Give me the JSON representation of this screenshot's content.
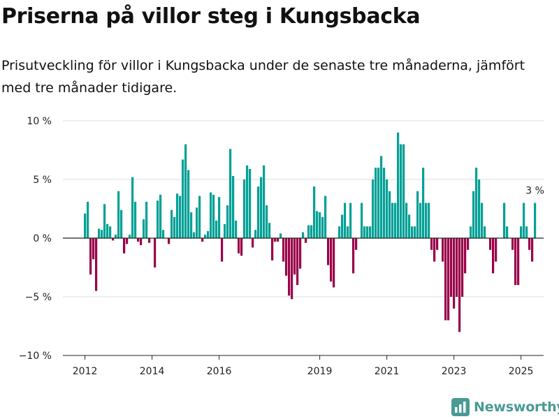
{
  "title": "Priserna på villor steg i Kungsbacka",
  "subtitle": "Prisutveckling för villor i Kungsbacka under de senaste tre månaderna, jämfört med tre månader tidigare.",
  "brand": {
    "name": "Newsworthy",
    "icon": "newsworthy-logo-icon"
  },
  "colors": {
    "positive": "#00a096",
    "negative": "#990049",
    "grid": "#dddddd",
    "zero": "#222222"
  },
  "chart_data": {
    "type": "bar",
    "x_start": "2012-01",
    "x_step": "month",
    "ylim": [
      -10,
      10
    ],
    "yticks": [
      10,
      5,
      0,
      -5,
      -10
    ],
    "ytick_labels": [
      "10 %",
      "5 %",
      "0 %",
      "−5 %",
      "−10 %"
    ],
    "xtick_labels": [
      "2012",
      "2014",
      "2016",
      "2019",
      "2021",
      "2023",
      "2025"
    ],
    "last_label": "3 %",
    "values": [
      2.1,
      3.1,
      -3.1,
      -1.8,
      -4.5,
      0.8,
      0.7,
      2.9,
      1.2,
      1.0,
      -0.2,
      0.3,
      4.0,
      2.4,
      -1.3,
      -0.5,
      0.3,
      5.2,
      3.1,
      -0.3,
      -0.6,
      1.6,
      3.1,
      -0.4,
      0,
      -2.5,
      3.2,
      3.7,
      0.7,
      0,
      -0.5,
      2.4,
      1.8,
      3.8,
      3.6,
      6.7,
      8.0,
      5.8,
      2.2,
      0.5,
      2.6,
      3.6,
      -0.3,
      0.3,
      0.6,
      3.9,
      3.7,
      1.5,
      3.5,
      -2.0,
      1.2,
      2.8,
      7.6,
      5.3,
      1.5,
      -1.3,
      -1.5,
      5.0,
      6.2,
      5.9,
      -0.8,
      0.7,
      4.4,
      5.2,
      6.2,
      2.8,
      1.3,
      -1.9,
      -0.3,
      -0.3,
      0.4,
      -2.0,
      -3.2,
      -4.9,
      -5.2,
      -3.1,
      -4.0,
      -2.6,
      0.5,
      -0.4,
      1.1,
      1.1,
      4.4,
      2.3,
      2.2,
      1.8,
      3.6,
      -2.3,
      -3.7,
      -4.2,
      0,
      1.0,
      2.0,
      3.0,
      1.0,
      3.0,
      -3.0,
      -1.0,
      0,
      3.0,
      1.0,
      1.0,
      1.0,
      5.0,
      6.0,
      6.0,
      7.0,
      6.0,
      5.0,
      4.0,
      3.0,
      3.0,
      9.0,
      8.0,
      8.0,
      3.0,
      2.0,
      1.0,
      1.0,
      4.0,
      3.0,
      6.0,
      3.0,
      3.0,
      -1.0,
      -2.0,
      -1.0,
      0,
      -2.0,
      -7.0,
      -7.0,
      -5.0,
      -6.0,
      -5.0,
      -8.0,
      -5.0,
      -3.0,
      -1.0,
      1.0,
      4.0,
      6.0,
      5.0,
      3.0,
      1.0,
      0,
      -1.0,
      -3.0,
      -2.0,
      0,
      0,
      3.0,
      1.0,
      0,
      -1.0,
      -4.0,
      -4.0,
      1.0,
      3.0,
      1.0,
      -1.0,
      -2.0,
      3.0
    ]
  }
}
